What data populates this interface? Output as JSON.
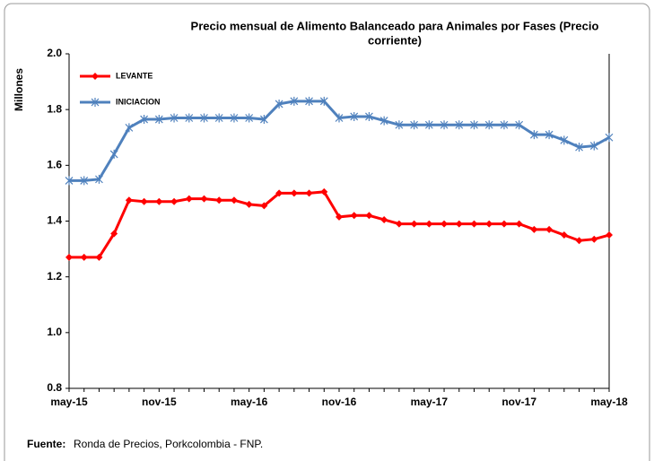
{
  "chart_data": {
    "type": "line",
    "title": [
      "Precio mensual de Alimento Balanceado para Animales por Fases (Precio",
      "corriente)"
    ],
    "y_label": "Millones",
    "categories": [
      "may-15",
      null,
      null,
      null,
      null,
      null,
      "nov-15",
      null,
      null,
      null,
      null,
      null,
      "may-16",
      null,
      null,
      null,
      null,
      null,
      "nov-16",
      null,
      null,
      null,
      null,
      null,
      "may-17",
      null,
      null,
      null,
      null,
      null,
      "nov-17",
      null,
      null,
      null,
      null,
      null,
      "may-18"
    ],
    "series": [
      {
        "name": "LEVANTE",
        "color": "#ff0000",
        "marker": "diamond",
        "values": [
          1.27,
          1.27,
          1.27,
          1.355,
          1.475,
          1.47,
          1.47,
          1.47,
          1.48,
          1.48,
          1.475,
          1.475,
          1.46,
          1.455,
          1.5,
          1.5,
          1.5,
          1.505,
          1.415,
          1.42,
          1.42,
          1.405,
          1.39,
          1.39,
          1.39,
          1.39,
          1.39,
          1.39,
          1.39,
          1.39,
          1.39,
          1.37,
          1.37,
          1.35,
          1.33,
          1.335,
          1.35
        ]
      },
      {
        "name": "INICIACION",
        "color": "#4f81bd",
        "marker": "star",
        "values": [
          1.545,
          1.545,
          1.55,
          1.64,
          1.735,
          1.765,
          1.765,
          1.77,
          1.77,
          1.77,
          1.77,
          1.77,
          1.77,
          1.765,
          1.82,
          1.83,
          1.83,
          1.83,
          1.77,
          1.775,
          1.775,
          1.76,
          1.745,
          1.745,
          1.745,
          1.745,
          1.745,
          1.745,
          1.745,
          1.745,
          1.745,
          1.71,
          1.71,
          1.69,
          1.665,
          1.67,
          1.7
        ]
      }
    ],
    "ylim": [
      0.8,
      2.0
    ],
    "yticks": [
      0.8,
      {
        "value": 1.0,
        "label": "1.0"
      },
      1.2,
      1.4,
      1.6,
      1.8,
      {
        "value": 2.0,
        "label": "2.0"
      }
    ],
    "legend": "upper left",
    "source": {
      "label": "Fuente:",
      "text": "Ronda de Precios, Porkcolombia - FNP."
    }
  }
}
